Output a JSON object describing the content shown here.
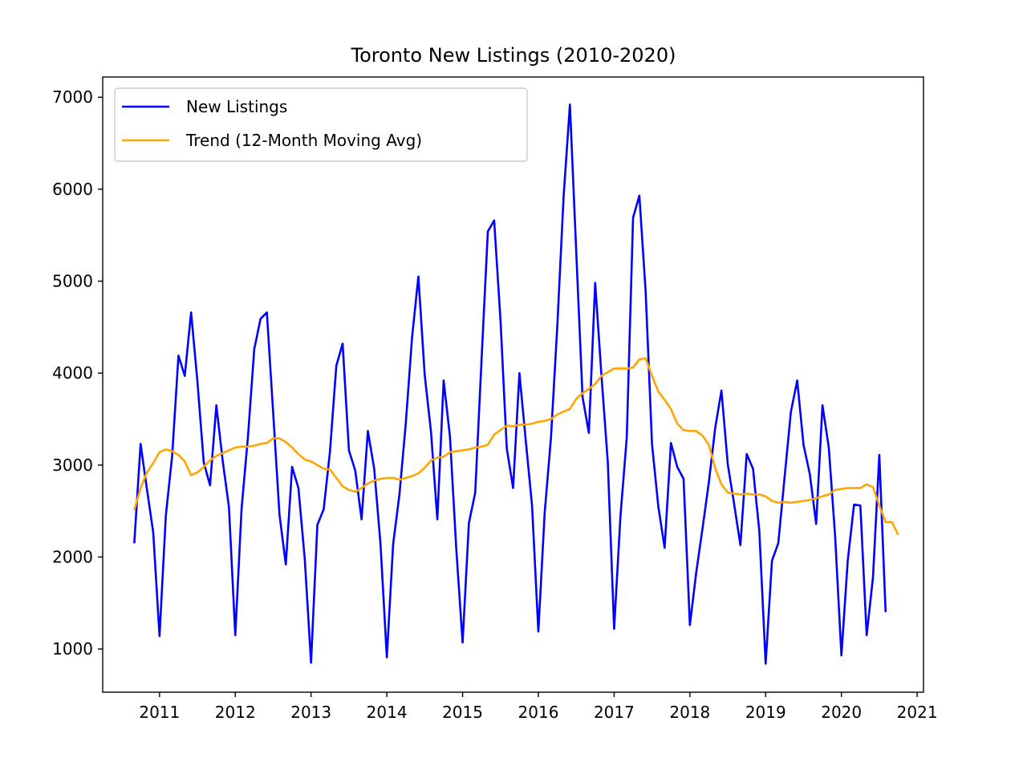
{
  "chart_data": {
    "type": "line",
    "title": "Toronto New Listings (2010-2020)",
    "xlabel": "",
    "ylabel": "",
    "x_start": "2010-09",
    "x_end": "2020-08",
    "x_step": "month",
    "xlim": [
      "2010-04",
      "2021-02"
    ],
    "ylim": [
      530,
      7220
    ],
    "x_ticks": [
      "2011",
      "2012",
      "2013",
      "2014",
      "2015",
      "2016",
      "2017",
      "2018",
      "2019",
      "2020",
      "2021"
    ],
    "y_ticks": [
      1000,
      2000,
      3000,
      4000,
      5000,
      6000,
      7000
    ],
    "grid": false,
    "legend_position": "top-left",
    "series": [
      {
        "name": "New Listings",
        "color": "#0000ff",
        "values": [
          2150,
          3230,
          2740,
          2270,
          1140,
          2450,
          3100,
          4190,
          3970,
          4660,
          3910,
          3030,
          2780,
          3650,
          3050,
          2540,
          1150,
          2530,
          3300,
          4260,
          4590,
          4660,
          3570,
          2460,
          1920,
          2980,
          2750,
          1980,
          850,
          2350,
          2520,
          3150,
          4080,
          4320,
          3160,
          2940,
          2410,
          3370,
          2960,
          2140,
          910,
          2140,
          2680,
          3450,
          4390,
          5050,
          3980,
          3360,
          2410,
          3920,
          3310,
          2090,
          1070,
          2370,
          2700,
          4140,
          5540,
          5660,
          4580,
          3180,
          2750,
          4000,
          3270,
          2560,
          1190,
          2480,
          3300,
          4510,
          5920,
          6920,
          5320,
          3740,
          3350,
          4980,
          3970,
          3030,
          1220,
          2440,
          3300,
          5690,
          5930,
          4880,
          3230,
          2550,
          2100,
          3240,
          2980,
          2850,
          1260,
          1830,
          2310,
          2810,
          3400,
          3810,
          3010,
          2580,
          2130,
          3120,
          2960,
          2280,
          840,
          1960,
          2150,
          2870,
          3580,
          3920,
          3220,
          2900,
          2360,
          3650,
          3190,
          2230,
          930,
          1960,
          2570,
          2560,
          1150,
          1780,
          3110,
          1400
        ]
      },
      {
        "name": "Trend (12-Month Moving Avg)",
        "color": "#ffa500",
        "values": [
          2510,
          2750,
          2920,
          3020,
          3140,
          3170,
          3150,
          3110,
          3040,
          2890,
          2920,
          2980,
          3050,
          3100,
          3130,
          3160,
          3190,
          3200,
          3200,
          3210,
          3230,
          3240,
          3290,
          3290,
          3250,
          3190,
          3120,
          3060,
          3040,
          3000,
          2960,
          2950,
          2860,
          2770,
          2730,
          2710,
          2750,
          2800,
          2830,
          2850,
          2860,
          2860,
          2840,
          2860,
          2880,
          2910,
          2970,
          3050,
          3080,
          3090,
          3140,
          3150,
          3160,
          3170,
          3190,
          3200,
          3220,
          3330,
          3380,
          3430,
          3420,
          3440,
          3440,
          3450,
          3470,
          3480,
          3500,
          3550,
          3580,
          3610,
          3720,
          3780,
          3830,
          3880,
          3970,
          4010,
          4050,
          4050,
          4050,
          4060,
          4150,
          4160,
          3970,
          3800,
          3710,
          3610,
          3450,
          3380,
          3370,
          3370,
          3320,
          3220,
          2970,
          2790,
          2700,
          2690,
          2680,
          2690,
          2680,
          2680,
          2660,
          2610,
          2590,
          2600,
          2590,
          2600,
          2610,
          2620,
          2640,
          2660,
          2680,
          2730,
          2740,
          2750,
          2750,
          2750,
          2790,
          2760,
          2560,
          2380,
          2380,
          2240
        ]
      }
    ]
  }
}
